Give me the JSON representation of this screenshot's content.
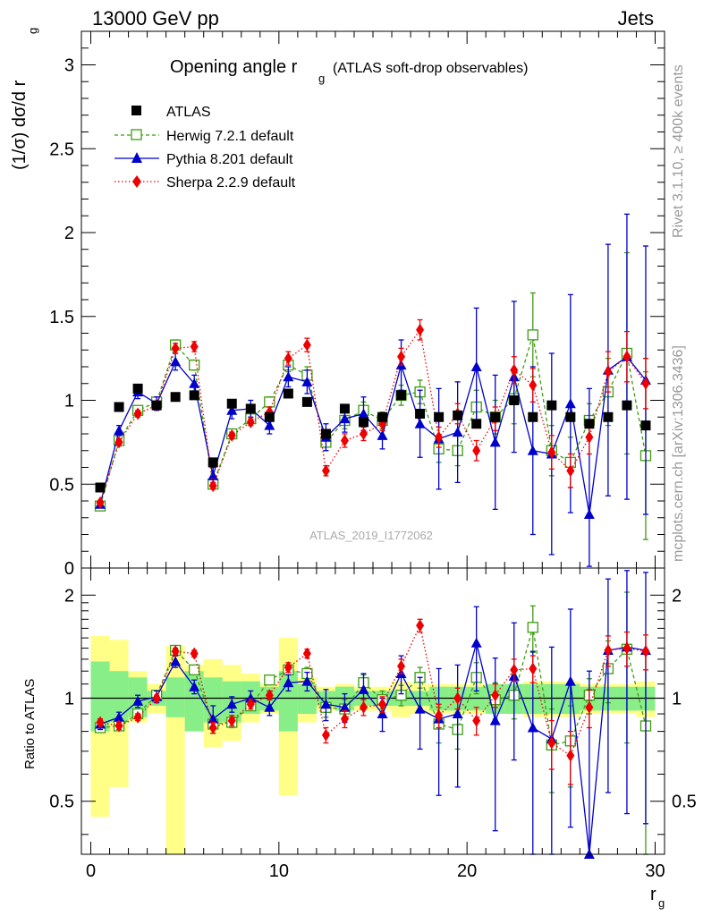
{
  "header": {
    "left": "13000 GeV pp",
    "right": "Jets"
  },
  "side_text": {
    "rivet": "Rivet 3.1.10, ≥ 400k events",
    "mcplots": "mcplots.cern.ch [arXiv:1306.3436]"
  },
  "chart_data": [
    {
      "type": "scatter",
      "title": "Opening angle r",
      "title_sub": "g",
      "title_note": "(ATLAS soft-drop observables)",
      "ylabel": "(1/σ) dσ/d r",
      "ylabel_sub": "g",
      "watermark": "ATLAS_2019_I1772062",
      "xlim": [
        -0.5,
        30.5
      ],
      "ylim": [
        0,
        3.2
      ],
      "yticks": [
        "0",
        "0.5",
        "1",
        "1.5",
        "2",
        "2.5",
        "3"
      ],
      "x": [
        0.5,
        1.5,
        2.5,
        3.5,
        4.5,
        5.5,
        6.5,
        7.5,
        8.5,
        9.5,
        10.5,
        11.5,
        12.5,
        13.5,
        14.5,
        15.5,
        16.5,
        17.5,
        18.5,
        19.5,
        20.5,
        21.5,
        22.5,
        23.5,
        24.5,
        25.5,
        26.5,
        27.5,
        28.5,
        29.5
      ],
      "series": [
        {
          "name": "ATLAS",
          "color": "#000000",
          "values": [
            0.48,
            0.96,
            1.07,
            0.97,
            1.02,
            1.03,
            0.63,
            0.98,
            0.95,
            0.9,
            1.04,
            0.99,
            0.8,
            0.95,
            0.87,
            0.9,
            1.03,
            0.92,
            0.9,
            0.91,
            0.86,
            0.9,
            1.0,
            0.9,
            0.97,
            0.9,
            0.86,
            0.9,
            0.97,
            0.85
          ]
        },
        {
          "name": "Herwig 7.2.1 default",
          "color": "#3e9c12",
          "values": [
            0.37,
            0.76,
            0.94,
            0.99,
            1.33,
            1.21,
            0.5,
            0.8,
            0.89,
            0.99,
            1.21,
            1.15,
            0.75,
            0.88,
            0.94,
            0.88,
            1.03,
            1.05,
            0.71,
            0.7,
            0.96,
            0.9,
            1.01,
            1.39,
            0.7,
            0.63,
            0.88,
            1.05,
            1.28,
            0.67
          ],
          "err": [
            0.01,
            0.02,
            0.02,
            0.02,
            0.03,
            0.03,
            0.02,
            0.02,
            0.02,
            0.03,
            0.04,
            0.05,
            0.05,
            0.05,
            0.05,
            0.05,
            0.06,
            0.07,
            0.08,
            0.09,
            0.1,
            0.1,
            0.15,
            0.25,
            0.15,
            0.15,
            0.1,
            0.2,
            0.6,
            0.5
          ]
        },
        {
          "name": "Pythia 8.201 default",
          "color": "#0000cc",
          "values": [
            0.38,
            0.82,
            1.05,
            0.98,
            1.23,
            1.1,
            0.55,
            0.94,
            0.95,
            0.85,
            1.14,
            1.11,
            0.78,
            0.89,
            0.92,
            0.79,
            1.21,
            0.86,
            0.77,
            0.81,
            1.2,
            0.75,
            1.14,
            0.7,
            0.68,
            0.98,
            0.32,
            1.18,
            1.26,
            1.12
          ],
          "err": [
            0.02,
            0.03,
            0.04,
            0.04,
            0.05,
            0.05,
            0.05,
            0.05,
            0.05,
            0.05,
            0.06,
            0.07,
            0.08,
            0.08,
            0.1,
            0.08,
            0.15,
            0.2,
            0.3,
            0.3,
            0.35,
            0.4,
            0.45,
            0.5,
            0.6,
            0.65,
            0.75,
            0.75,
            0.85,
            0.8
          ]
        },
        {
          "name": "Sherpa 2.2.9 default",
          "color": "#ee0000",
          "values": [
            0.39,
            0.75,
            0.92,
            0.97,
            1.31,
            1.32,
            0.49,
            0.79,
            0.87,
            0.93,
            1.25,
            1.33,
            0.58,
            0.76,
            0.8,
            0.86,
            1.26,
            1.42,
            0.78,
            0.92,
            0.7,
            0.89,
            1.18,
            1.09,
            0.69,
            0.58,
            0.78,
            1.17,
            1.26,
            1.1
          ],
          "err": [
            0.01,
            0.02,
            0.02,
            0.02,
            0.03,
            0.03,
            0.02,
            0.02,
            0.02,
            0.03,
            0.04,
            0.04,
            0.03,
            0.04,
            0.04,
            0.04,
            0.05,
            0.06,
            0.06,
            0.06,
            0.06,
            0.07,
            0.08,
            0.1,
            0.1,
            0.1,
            0.1,
            0.12,
            0.15,
            0.15
          ]
        }
      ]
    },
    {
      "type": "scatter",
      "ylabel": "Ratio to ATLAS",
      "xlabel": "r",
      "xlabel_sub": "g",
      "xlim": [
        -0.5,
        30.5
      ],
      "ylim": [
        0.35,
        2.4
      ],
      "yticks": [
        "0.5",
        "1",
        "2"
      ],
      "xticks": [
        "0",
        "10",
        "20",
        "30"
      ],
      "x": [
        0.5,
        1.5,
        2.5,
        3.5,
        4.5,
        5.5,
        6.5,
        7.5,
        8.5,
        9.5,
        10.5,
        11.5,
        12.5,
        13.5,
        14.5,
        15.5,
        16.5,
        17.5,
        18.5,
        19.5,
        20.5,
        21.5,
        22.5,
        23.5,
        24.5,
        25.5,
        26.5,
        27.5,
        28.5,
        29.5
      ],
      "band_inner": {
        "name": "ATLAS stat",
        "color": "#88ee88",
        "lo": [
          0.8,
          0.85,
          0.88,
          0.95,
          0.88,
          0.8,
          0.85,
          0.85,
          0.9,
          0.92,
          0.8,
          0.9,
          0.95,
          0.92,
          0.95,
          0.95,
          0.95,
          0.95,
          0.92,
          0.92,
          0.92,
          0.9,
          0.9,
          0.9,
          0.9,
          0.9,
          0.92,
          0.92,
          0.92,
          0.92
        ],
        "hi": [
          1.28,
          1.2,
          1.15,
          1.05,
          1.15,
          1.2,
          1.15,
          1.12,
          1.12,
          1.08,
          1.2,
          1.1,
          1.05,
          1.08,
          1.05,
          1.05,
          1.05,
          1.05,
          1.08,
          1.08,
          1.08,
          1.1,
          1.1,
          1.1,
          1.1,
          1.1,
          1.08,
          1.08,
          1.08,
          1.08
        ]
      },
      "band_outer": {
        "name": "ATLAS total",
        "color": "#ffff88",
        "lo": [
          0.45,
          0.55,
          0.85,
          0.9,
          0.35,
          0.8,
          0.72,
          0.75,
          0.85,
          0.9,
          0.52,
          0.85,
          0.92,
          0.92,
          0.92,
          0.92,
          0.88,
          0.9,
          0.9,
          0.9,
          0.9,
          0.9,
          0.9,
          0.88,
          0.88,
          0.88,
          0.9,
          0.9,
          0.9,
          0.88
        ],
        "hi": [
          1.52,
          1.48,
          1.2,
          1.1,
          1.42,
          1.25,
          1.3,
          1.25,
          1.18,
          1.1,
          1.5,
          1.15,
          1.08,
          1.1,
          1.08,
          1.08,
          1.12,
          1.1,
          1.1,
          1.1,
          1.1,
          1.1,
          1.1,
          1.12,
          1.12,
          1.12,
          1.1,
          1.1,
          1.1,
          1.12
        ]
      },
      "series": [
        {
          "name": "Herwig 7.2.1 default",
          "color": "#3e9c12",
          "values": [
            0.82,
            0.83,
            0.9,
            1.02,
            1.38,
            1.21,
            0.84,
            0.85,
            0.95,
            1.13,
            1.21,
            1.18,
            0.94,
            0.93,
            1.11,
            0.99,
            1.02,
            1.15,
            0.84,
            0.81,
            1.15,
            0.99,
            1.02,
            1.61,
            0.73,
            0.75,
            1.02,
            1.22,
            1.39,
            0.83
          ],
          "err": [
            0.02,
            0.02,
            0.02,
            0.02,
            0.03,
            0.03,
            0.03,
            0.03,
            0.03,
            0.03,
            0.04,
            0.05,
            0.06,
            0.06,
            0.06,
            0.06,
            0.07,
            0.08,
            0.1,
            0.1,
            0.12,
            0.12,
            0.15,
            0.25,
            0.2,
            0.2,
            0.12,
            0.25,
            0.65,
            0.55
          ]
        },
        {
          "name": "Pythia 8.201 default",
          "color": "#0000cc",
          "values": [
            0.84,
            0.88,
            0.98,
            1.01,
            1.28,
            1.08,
            0.87,
            0.96,
            1.0,
            0.94,
            1.11,
            1.12,
            0.96,
            0.94,
            1.06,
            0.9,
            1.18,
            0.93,
            0.87,
            0.9,
            1.45,
            0.86,
            1.16,
            0.82,
            0.76,
            1.12,
            0.35,
            1.38,
            1.41,
            1.38
          ],
          "err": [
            0.03,
            0.03,
            0.04,
            0.04,
            0.05,
            0.05,
            0.08,
            0.05,
            0.05,
            0.05,
            0.06,
            0.07,
            0.1,
            0.09,
            0.12,
            0.1,
            0.15,
            0.22,
            0.35,
            0.35,
            0.4,
            0.45,
            0.5,
            0.55,
            0.65,
            0.7,
            0.85,
            0.85,
            0.95,
            0.95
          ]
        },
        {
          "name": "Sherpa 2.2.9 default",
          "color": "#ee0000",
          "values": [
            0.85,
            0.83,
            0.88,
            1.0,
            1.37,
            1.35,
            0.82,
            0.86,
            0.96,
            1.02,
            1.23,
            1.35,
            0.78,
            0.87,
            0.94,
            0.96,
            1.24,
            1.63,
            0.89,
            1.0,
            0.86,
            1.02,
            1.21,
            1.22,
            0.74,
            0.68,
            0.94,
            1.38,
            1.4,
            1.37
          ],
          "err": [
            0.02,
            0.02,
            0.02,
            0.02,
            0.03,
            0.03,
            0.03,
            0.03,
            0.03,
            0.03,
            0.04,
            0.04,
            0.04,
            0.05,
            0.05,
            0.05,
            0.06,
            0.07,
            0.07,
            0.07,
            0.08,
            0.08,
            0.09,
            0.11,
            0.12,
            0.12,
            0.12,
            0.14,
            0.16,
            0.16
          ]
        }
      ]
    }
  ]
}
